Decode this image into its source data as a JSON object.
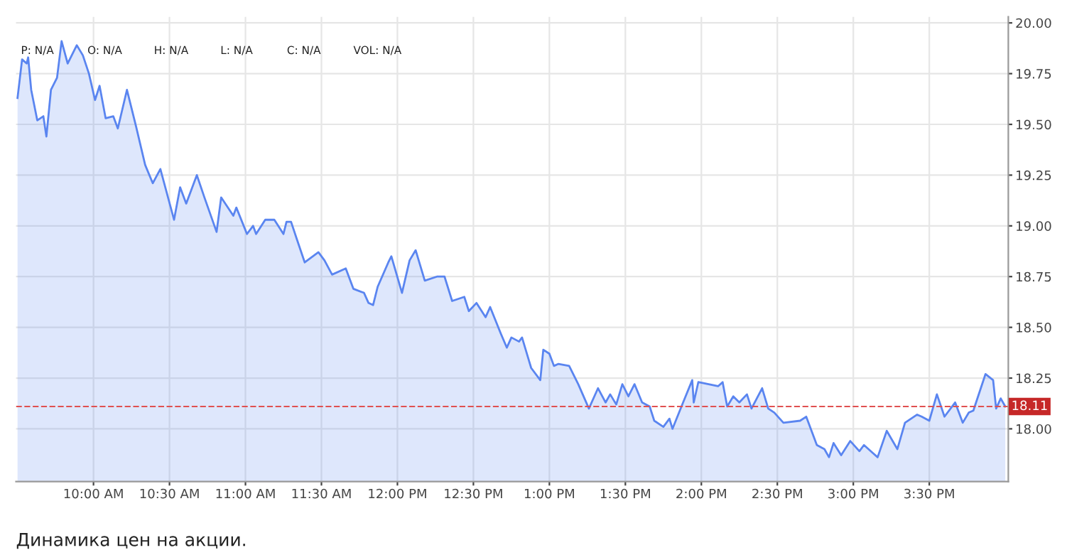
{
  "chart_data": {
    "type": "area",
    "x": [
      9.5,
      9.53,
      9.56,
      9.57,
      9.59,
      9.63,
      9.67,
      9.69,
      9.72,
      9.76,
      9.79,
      9.83,
      9.89,
      9.93,
      9.97,
      10.01,
      10.04,
      10.08,
      10.13,
      10.16,
      10.22,
      10.28,
      10.34,
      10.39,
      10.44,
      10.53,
      10.57,
      10.61,
      10.68,
      10.73,
      10.81,
      10.84,
      10.92,
      10.94,
      11.01,
      11.05,
      11.07,
      11.13,
      11.19,
      11.25,
      11.27,
      11.3,
      11.34,
      11.39,
      11.48,
      11.52,
      11.57,
      11.66,
      11.71,
      11.78,
      11.81,
      11.84,
      11.87,
      11.94,
      11.96,
      12.03,
      12.08,
      12.12,
      12.18,
      12.26,
      12.31,
      12.36,
      12.44,
      12.47,
      12.52,
      12.58,
      12.61,
      12.68,
      12.72,
      12.75,
      12.8,
      12.82,
      12.88,
      12.94,
      12.96,
      13.0,
      13.03,
      13.06,
      13.13,
      13.19,
      13.26,
      13.32,
      13.37,
      13.4,
      13.44,
      13.48,
      13.52,
      13.56,
      13.61,
      13.66,
      13.69,
      13.75,
      13.79,
      13.81,
      13.88,
      13.94,
      13.95,
      13.98,
      14.11,
      14.14,
      14.17,
      14.21,
      14.25,
      14.3,
      14.33,
      14.4,
      14.44,
      14.48,
      14.54,
      14.65,
      14.69,
      14.76,
      14.81,
      14.84,
      14.87,
      14.92,
      14.98,
      15.04,
      15.07,
      15.13,
      15.16,
      15.22,
      15.29,
      15.34,
      15.42,
      15.45,
      15.5,
      15.55,
      15.6,
      15.67,
      15.72,
      15.76,
      15.79,
      15.87,
      15.92,
      15.94,
      15.97,
      16.0
    ],
    "series": [
      {
        "color": "#5a85f0",
        "values": [
          19.63,
          19.82,
          19.8,
          19.83,
          19.67,
          19.52,
          19.54,
          19.44,
          19.67,
          19.73,
          19.91,
          19.8,
          19.89,
          19.84,
          19.75,
          19.62,
          19.69,
          19.53,
          19.54,
          19.48,
          19.67,
          19.49,
          19.3,
          19.21,
          19.28,
          19.03,
          19.19,
          19.11,
          19.25,
          19.14,
          18.97,
          19.14,
          19.05,
          19.09,
          18.96,
          19.0,
          18.96,
          19.03,
          19.03,
          18.96,
          19.02,
          19.02,
          18.93,
          18.82,
          18.87,
          18.83,
          18.76,
          18.79,
          18.69,
          18.67,
          18.62,
          18.61,
          18.7,
          18.82,
          18.85,
          18.67,
          18.83,
          18.88,
          18.73,
          18.75,
          18.75,
          18.63,
          18.65,
          18.58,
          18.62,
          18.55,
          18.6,
          18.47,
          18.4,
          18.45,
          18.43,
          18.45,
          18.3,
          18.24,
          18.39,
          18.37,
          18.31,
          18.32,
          18.31,
          18.22,
          18.1,
          18.2,
          18.13,
          18.17,
          18.12,
          18.22,
          18.16,
          18.22,
          18.13,
          18.11,
          18.04,
          18.01,
          18.05,
          18.0,
          18.13,
          18.24,
          18.13,
          18.23,
          18.21,
          18.23,
          18.11,
          18.16,
          18.13,
          18.17,
          18.1,
          18.2,
          18.1,
          18.08,
          18.03,
          18.04,
          18.06,
          17.92,
          17.9,
          17.86,
          17.93,
          17.87,
          17.94,
          17.89,
          17.92,
          17.88,
          17.86,
          17.99,
          17.9,
          18.03,
          18.07,
          18.06,
          18.04,
          18.17,
          18.06,
          18.13,
          18.03,
          18.08,
          18.09,
          18.27,
          18.24,
          18.1,
          18.15,
          18.11
        ]
      }
    ],
    "xlim": [
      9.49,
      16.02
    ],
    "xticks": [
      {
        "value": 10,
        "label": "10:00 AM"
      },
      {
        "value": 10.5,
        "label": "10:30 AM"
      },
      {
        "value": 11,
        "label": "11:00 AM"
      },
      {
        "value": 11.5,
        "label": "11:30 AM"
      },
      {
        "value": 12,
        "label": "12:00 PM"
      },
      {
        "value": 12.5,
        "label": "12:30 PM"
      },
      {
        "value": 13,
        "label": "1:00 PM"
      },
      {
        "value": 13.5,
        "label": "1:30 PM"
      },
      {
        "value": 14,
        "label": "2:00 PM"
      },
      {
        "value": 14.5,
        "label": "2:30 PM"
      },
      {
        "value": 15,
        "label": "3:00 PM"
      },
      {
        "value": 15.5,
        "label": "3:30 PM"
      }
    ],
    "ylim": [
      17.74,
      20.03
    ],
    "yticks": [
      {
        "value": 18,
        "label": "18.00"
      },
      {
        "value": 18.25,
        "label": "18.25"
      },
      {
        "value": 18.5,
        "label": "18.50"
      },
      {
        "value": 18.75,
        "label": "18.75"
      },
      {
        "value": 19,
        "label": "19.00"
      },
      {
        "value": 19.25,
        "label": "19.25"
      },
      {
        "value": 19.5,
        "label": "19.50"
      },
      {
        "value": 19.75,
        "label": "19.75"
      },
      {
        "value": 20,
        "label": "20.00"
      }
    ],
    "ref_lines": [
      {
        "axis": "y",
        "value": 18.11,
        "label": "18.11",
        "color": "#e05050",
        "line_style": "dashed"
      }
    ],
    "grid": true,
    "annotations": [
      "P: N/A",
      "O: N/A",
      "H: N/A",
      "L: N/A",
      "C: N/A",
      "VOL: N/A",
      "Динамика цен на акции."
    ]
  }
}
